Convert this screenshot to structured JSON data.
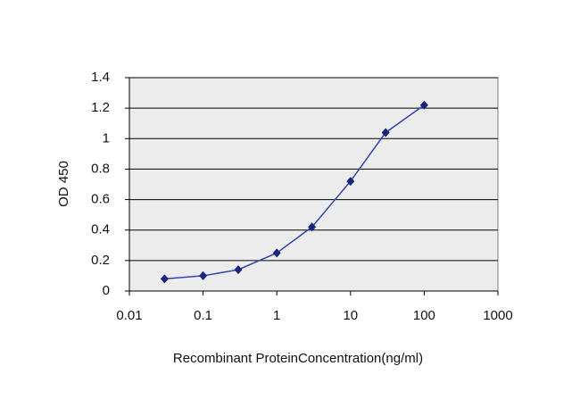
{
  "chart_data": {
    "type": "line",
    "x_label": "Recombinant ProteinConcentration(ng/ml)",
    "y_label": "OD 450",
    "x": [
      0.03,
      0.1,
      0.3,
      1,
      3,
      10,
      30,
      100
    ],
    "series": [
      {
        "color": "#3344aa",
        "marker_color": "#1a237e",
        "values": [
          0.08,
          0.1,
          0.14,
          0.25,
          0.42,
          0.72,
          1.04,
          1.22
        ]
      }
    ],
    "xlim": [
      0.01,
      1000
    ],
    "xticks": [
      0.01,
      0.1,
      1,
      10,
      100,
      1000
    ],
    "x_log": true,
    "ylim": [
      0,
      1.4
    ],
    "yticks": [
      0,
      0.2,
      0.4,
      0.6,
      0.8,
      1,
      1.2,
      1.4
    ],
    "grid": true,
    "plot_background": "#ececec"
  }
}
